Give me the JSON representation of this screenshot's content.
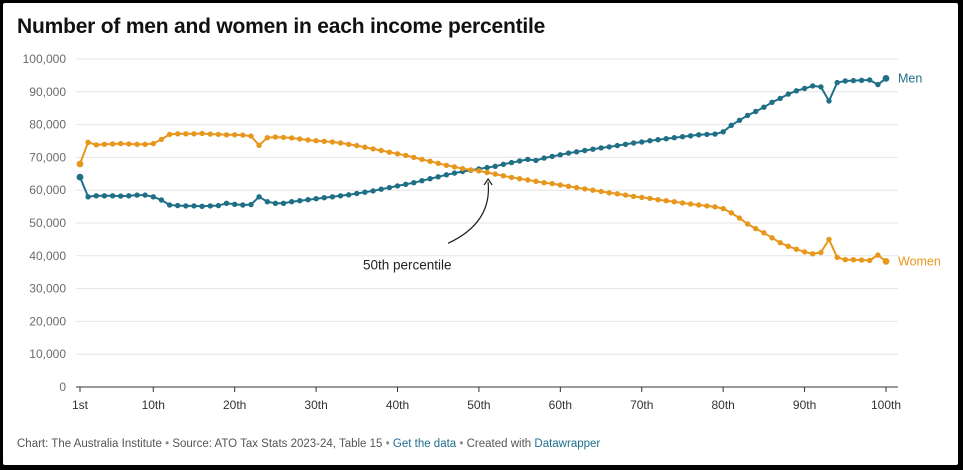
{
  "chart_data": {
    "type": "line",
    "title": "Number of men and women in each income percentile",
    "ylim": [
      0,
      100000
    ],
    "y_ticks": [
      0,
      10000,
      20000,
      30000,
      40000,
      50000,
      60000,
      70000,
      80000,
      90000,
      100000
    ],
    "y_tick_labels": [
      "0",
      "10,000",
      "20,000",
      "30,000",
      "40,000",
      "50,000",
      "60,000",
      "70,000",
      "80,000",
      "90,000",
      "100,000"
    ],
    "x_ticks": [
      1,
      10,
      20,
      30,
      40,
      50,
      60,
      70,
      80,
      90,
      100
    ],
    "x_tick_labels": [
      "1st",
      "10th",
      "20th",
      "30th",
      "40th",
      "50th",
      "60th",
      "70th",
      "80th",
      "90th",
      "100th"
    ],
    "xlim": [
      1,
      100
    ],
    "grid": true,
    "x": [
      1,
      2,
      3,
      4,
      5,
      6,
      7,
      8,
      9,
      10,
      11,
      12,
      13,
      14,
      15,
      16,
      17,
      18,
      19,
      20,
      21,
      22,
      23,
      24,
      25,
      26,
      27,
      28,
      29,
      30,
      31,
      32,
      33,
      34,
      35,
      36,
      37,
      38,
      39,
      40,
      41,
      42,
      43,
      44,
      45,
      46,
      47,
      48,
      49,
      50,
      51,
      52,
      53,
      54,
      55,
      56,
      57,
      58,
      59,
      60,
      61,
      62,
      63,
      64,
      65,
      66,
      67,
      68,
      69,
      70,
      71,
      72,
      73,
      74,
      75,
      76,
      77,
      78,
      79,
      80,
      81,
      82,
      83,
      84,
      85,
      86,
      87,
      88,
      89,
      90,
      91,
      92,
      93,
      94,
      95,
      96,
      97,
      98,
      99,
      100
    ],
    "series": [
      {
        "name": "Men",
        "color": "#1f6f86",
        "values": [
          64000,
          58000,
          58300,
          58300,
          58300,
          58200,
          58300,
          58500,
          58500,
          58000,
          57000,
          55500,
          55300,
          55200,
          55200,
          55100,
          55200,
          55300,
          56000,
          55700,
          55500,
          55600,
          58000,
          56500,
          56000,
          56000,
          56500,
          56800,
          57100,
          57400,
          57700,
          58000,
          58300,
          58600,
          59000,
          59400,
          59800,
          60300,
          60800,
          61300,
          61800,
          62300,
          62900,
          63500,
          64100,
          64700,
          65200,
          65700,
          66100,
          66500,
          66900,
          67300,
          67900,
          68400,
          68900,
          69400,
          69100,
          69800,
          70300,
          70800,
          71300,
          71700,
          72100,
          72500,
          72900,
          73200,
          73600,
          74000,
          74400,
          74700,
          75100,
          75400,
          75700,
          76000,
          76300,
          76600,
          76900,
          77000,
          77100,
          77800,
          79800,
          81300,
          82800,
          84000,
          85300,
          86800,
          88000,
          89300,
          90300,
          91000,
          91800,
          91500,
          87200,
          92800,
          93300,
          93400,
          93500,
          93600,
          92200,
          94100
        ]
      },
      {
        "name": "Women",
        "color": "#e8971d",
        "values": [
          68000,
          74600,
          73800,
          74000,
          74100,
          74200,
          74100,
          74000,
          74000,
          74200,
          75500,
          77000,
          77200,
          77200,
          77200,
          77300,
          77100,
          77000,
          76900,
          76900,
          76800,
          76500,
          73700,
          76000,
          76200,
          76100,
          75900,
          75600,
          75300,
          75100,
          74900,
          74700,
          74400,
          74000,
          73600,
          73100,
          72600,
          72100,
          71600,
          71100,
          70600,
          70000,
          69400,
          68800,
          68200,
          67600,
          67100,
          66600,
          66200,
          65900,
          65400,
          64900,
          64400,
          63900,
          63500,
          63100,
          62700,
          62300,
          62000,
          61600,
          61200,
          60800,
          60400,
          60000,
          59600,
          59200,
          58900,
          58500,
          58100,
          57800,
          57500,
          57100,
          56800,
          56500,
          56100,
          55800,
          55500,
          55200,
          54900,
          54400,
          53100,
          51500,
          49700,
          48300,
          47000,
          45500,
          44000,
          42900,
          42000,
          41200,
          40600,
          41000,
          45000,
          39500,
          38800,
          38800,
          38700,
          38600,
          40200,
          38300
        ]
      }
    ],
    "annotation": "50th percentile"
  },
  "footer": {
    "chart_credit": "Chart: The Australia Institute",
    "bullet": "•",
    "source": "Source: ATO Tax Stats 2023-24, Table 15",
    "get_data": "Get the data",
    "created_with": "Created with",
    "tool": "Datawrapper"
  }
}
